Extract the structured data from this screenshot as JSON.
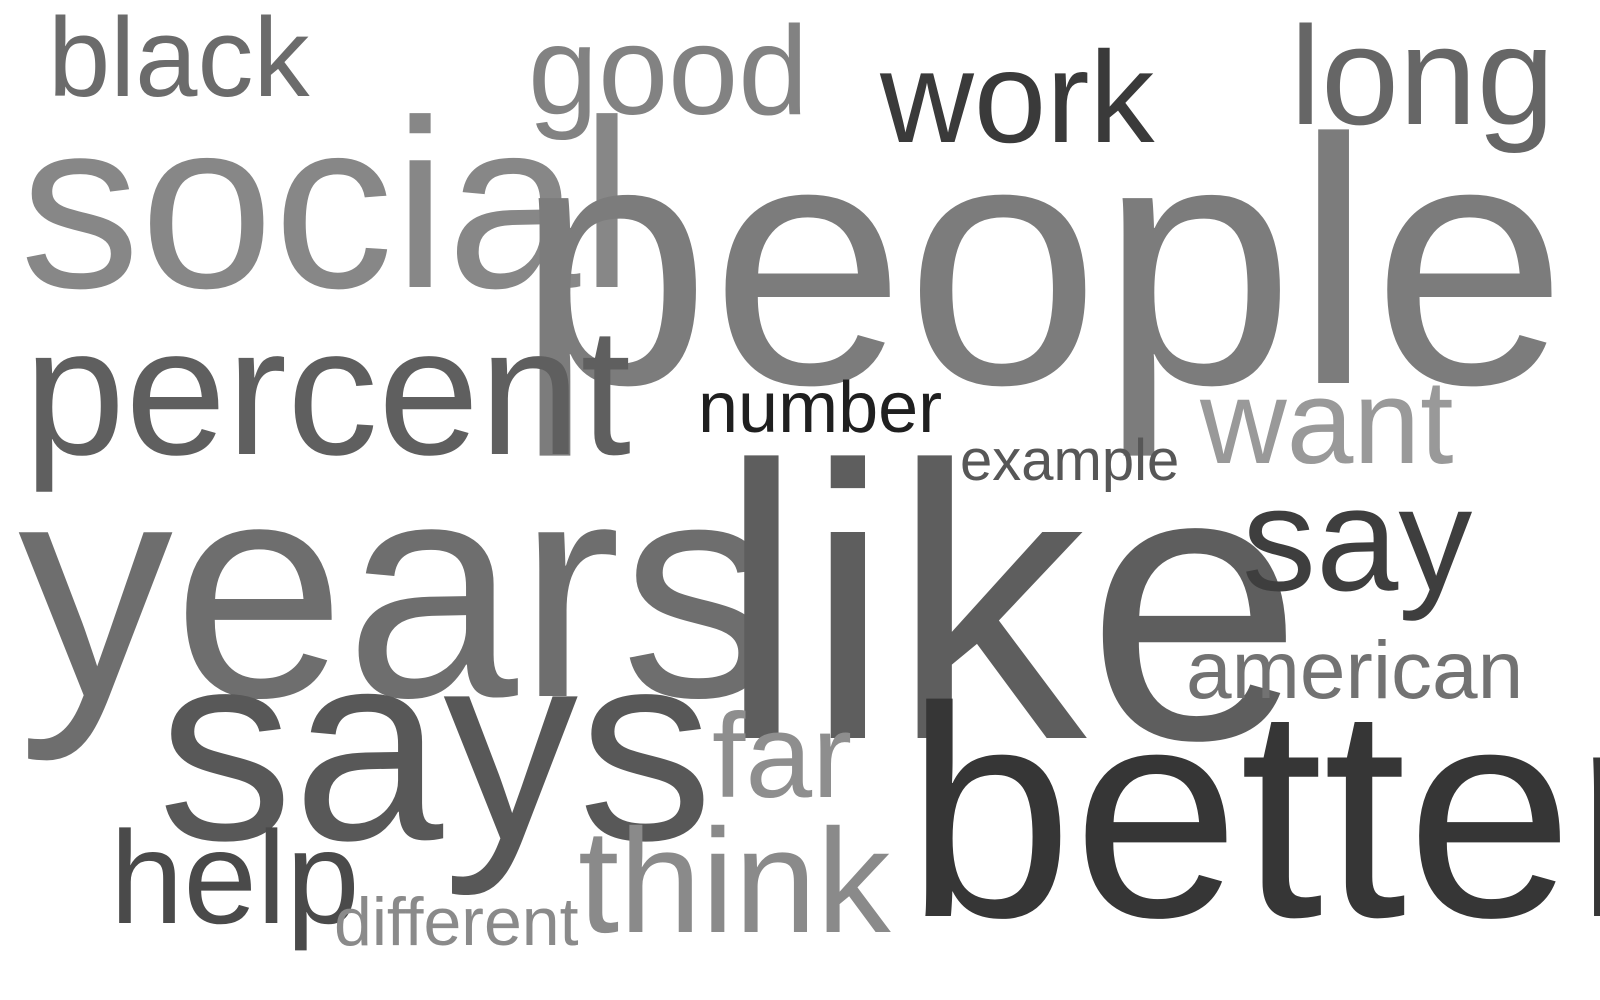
{
  "words": {
    "black": {
      "text": "black",
      "color": "#6b6b6b"
    },
    "good": {
      "text": "good",
      "color": "#828282"
    },
    "work": {
      "text": "work",
      "color": "#3a3a3a"
    },
    "long": {
      "text": "long",
      "color": "#666666"
    },
    "social": {
      "text": "social",
      "color": "#878787"
    },
    "people": {
      "text": "people",
      "color": "#7c7c7c"
    },
    "percent": {
      "text": "percent",
      "color": "#5f5f5f"
    },
    "number": {
      "text": "number",
      "color": "#1f1f1f"
    },
    "want": {
      "text": "want",
      "color": "#999999"
    },
    "example": {
      "text": "example",
      "color": "#575757"
    },
    "years": {
      "text": "years",
      "color": "#6e6e6e"
    },
    "like": {
      "text": "like",
      "color": "#5e5e5e"
    },
    "say": {
      "text": "say",
      "color": "#3e3e3e"
    },
    "american": {
      "text": "american",
      "color": "#727272"
    },
    "says": {
      "text": "says",
      "color": "#585858"
    },
    "far": {
      "text": "far",
      "color": "#8e8e8e"
    },
    "better": {
      "text": "better",
      "color": "#363636"
    },
    "help": {
      "text": "help",
      "color": "#4a4a4a"
    },
    "different": {
      "text": "different",
      "color": "#8a8a8a"
    },
    "think": {
      "text": "think",
      "color": "#8a8a8a"
    }
  }
}
